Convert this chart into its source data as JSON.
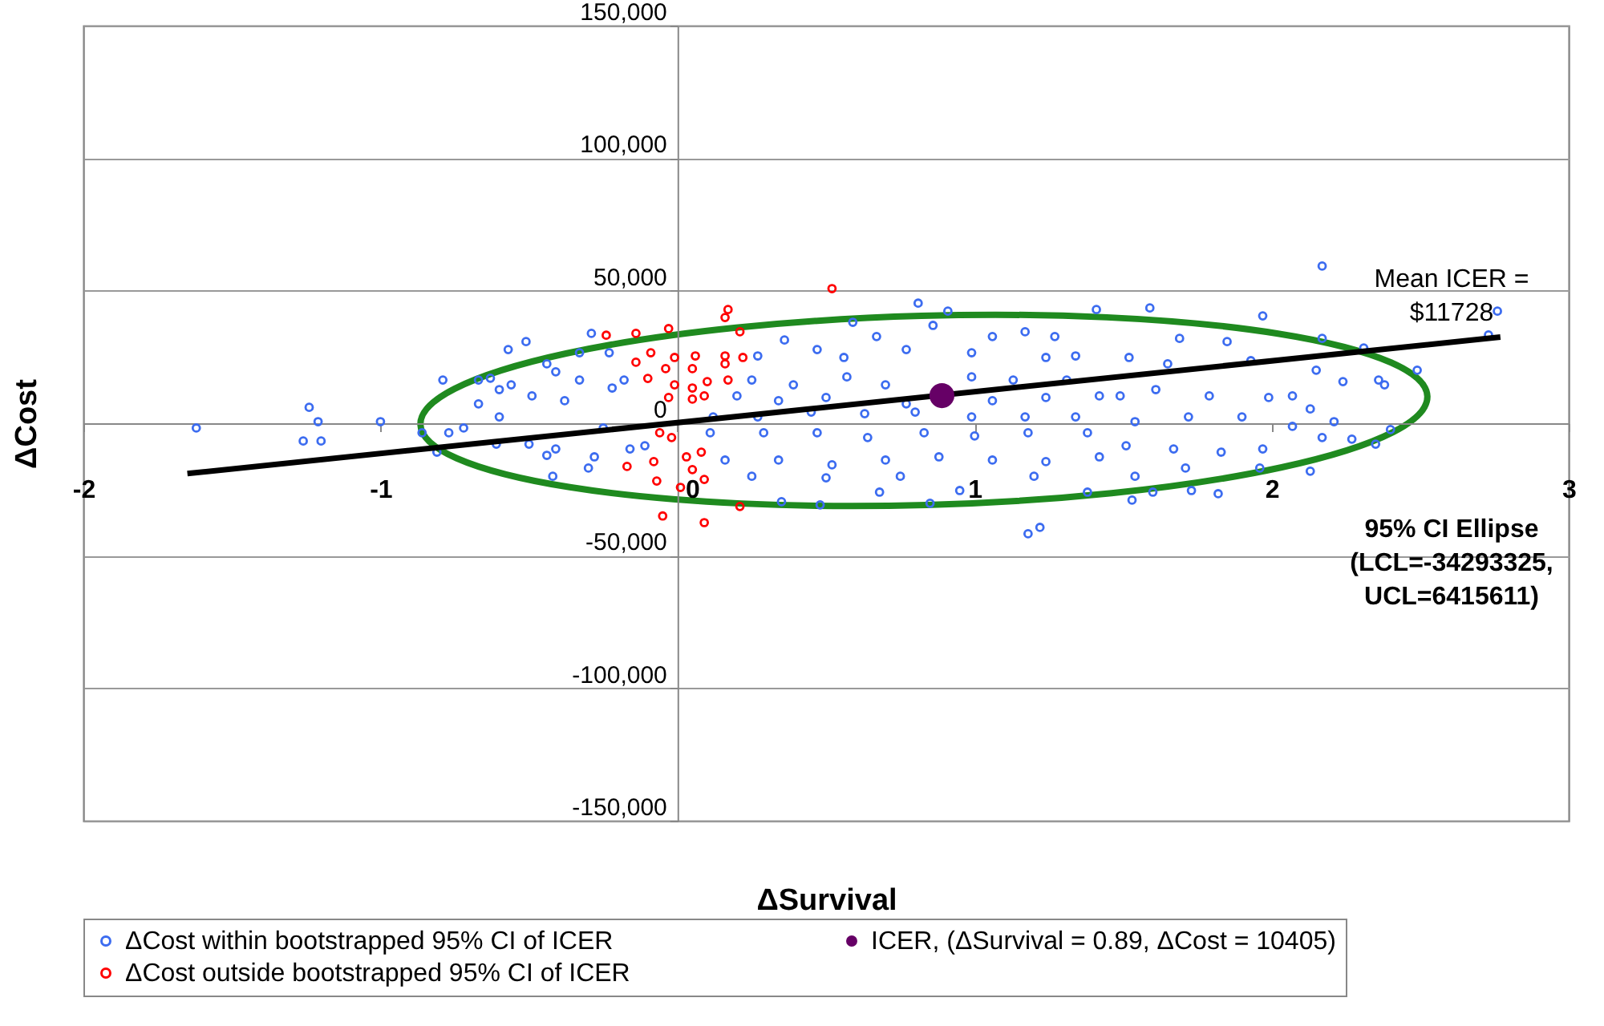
{
  "chart_data": {
    "type": "scatter",
    "xlabel": "ΔSurvival",
    "ylabel": "ΔCost",
    "xlim": [
      -2,
      3
    ],
    "xticks": [
      -2,
      -1,
      0,
      1,
      2,
      3
    ],
    "ylim": [
      -150000,
      150000
    ],
    "yticks": [
      {
        "value": -150000,
        "label": "-150,000"
      },
      {
        "value": -100000,
        "label": "-100,000"
      },
      {
        "value": -50000,
        "label": "-50,000"
      },
      {
        "value": 0,
        "label": "0"
      },
      {
        "value": 50000,
        "label": "50,000"
      },
      {
        "value": 100000,
        "label": "100,000"
      },
      {
        "value": 150000,
        "label": "150,000"
      }
    ],
    "grid": "y",
    "legend": "bottom",
    "series": [
      {
        "name": "ΔCost within bootstrapped 95% CI of ICER",
        "color": "#3c6cf0",
        "marker": "circle",
        "x": [
          -1.62,
          -1.24,
          -1.21,
          -1.26,
          -1.2,
          -1.0,
          -0.86,
          -0.81,
          -0.79,
          -0.77,
          -0.67,
          -0.63,
          -0.57,
          -0.51,
          -0.44,
          -0.41,
          -0.67,
          -0.6,
          -0.61,
          -0.5,
          -0.44,
          -0.41,
          -0.33,
          -0.33,
          -0.29,
          -0.3,
          -0.28,
          -0.42,
          -0.23,
          -0.22,
          -0.25,
          -0.16,
          -0.11,
          -0.18,
          -0.38,
          -0.49,
          -0.56,
          -0.72,
          -0.6,
          0.81,
          0.91,
          0.59,
          0.86,
          0.36,
          0.67,
          1.06,
          1.17,
          1.27,
          1.41,
          0.27,
          0.47,
          0.56,
          0.77,
          0.99,
          1.24,
          1.34,
          0.25,
          0.39,
          0.57,
          0.7,
          0.99,
          1.13,
          1.31,
          0.2,
          0.34,
          0.5,
          0.77,
          1.06,
          1.24,
          1.42,
          0.12,
          0.27,
          0.45,
          0.63,
          0.8,
          0.99,
          1.17,
          1.34,
          0.11,
          0.29,
          0.47,
          0.64,
          0.83,
          1.0,
          1.18,
          1.38,
          0.16,
          0.34,
          0.52,
          0.7,
          0.88,
          1.06,
          1.24,
          1.42,
          0.25,
          0.5,
          0.75,
          0.95,
          0.68,
          0.48,
          0.85,
          0.35,
          1.18,
          1.22,
          1.38,
          1.2,
          2.17,
          2.76,
          2.73,
          1.59,
          1.97,
          1.69,
          1.85,
          2.17,
          2.31,
          2.49,
          1.93,
          1.65,
          1.52,
          2.15,
          2.24,
          2.36,
          2.38,
          2.07,
          2.13,
          1.99,
          1.79,
          1.61,
          1.49,
          1.9,
          1.72,
          1.54,
          2.07,
          2.21,
          2.4,
          2.17,
          2.27,
          2.35,
          1.97,
          1.83,
          1.67,
          1.51,
          2.13,
          1.96,
          1.71,
          1.54,
          1.82,
          1.73,
          1.6,
          1.53
        ],
        "values": [
          -1800,
          6000,
          600,
          -6700,
          -6700,
          600,
          -3600,
          -10900,
          16300,
          -3600,
          16300,
          17000,
          27800,
          30800,
          22400,
          19400,
          7300,
          2400,
          -7900,
          -7900,
          -12100,
          -9700,
          26600,
          16300,
          33900,
          -16900,
          -12700,
          -20000,
          26600,
          13300,
          -1800,
          -9700,
          -8500,
          16300,
          8500,
          10300,
          14500,
          -1800,
          12700,
          45300,
          42300,
          38100,
          36900,
          31400,
          32700,
          32700,
          34500,
          32700,
          42900,
          25400,
          27800,
          24800,
          27800,
          26600,
          24800,
          25400,
          16300,
          14500,
          17500,
          14500,
          17500,
          16300,
          16300,
          10300,
          8500,
          9700,
          7300,
          8500,
          9700,
          10300,
          2400,
          2400,
          4200,
          3600,
          4200,
          2400,
          2400,
          2400,
          -3600,
          -3600,
          -3600,
          -5400,
          -3600,
          -4800,
          -3600,
          -3600,
          -13900,
          -13900,
          -15700,
          -13900,
          -12700,
          -13900,
          -14500,
          -12700,
          -20000,
          -20600,
          -20000,
          -25400,
          -26000,
          -30800,
          -30200,
          -29600,
          -41700,
          -39300,
          -26000,
          -20000,
          59300,
          42300,
          33300,
          43500,
          40500,
          32000,
          30800,
          32000,
          28400,
          20000,
          23600,
          22400,
          24800,
          20000,
          15700,
          16300,
          14500,
          10300,
          5400,
          9700,
          10300,
          12700,
          10300,
          2400,
          2400,
          600,
          -1200,
          600,
          -2400,
          -5400,
          -6000,
          -7900,
          -9700,
          -10900,
          -9700,
          -8500,
          -18100,
          -16900,
          -16900,
          -20000,
          -26600,
          -25400,
          -26000,
          -29000
        ]
      },
      {
        "name": "ICER, (ΔSurvival = 0.89, ΔCost = 10405)",
        "color": "#660066",
        "marker": "circle",
        "x": [
          0.89
        ],
        "values": [
          10405
        ]
      },
      {
        "name": "ΔCost outside bootstrapped 95% CI of ICER",
        "color": "#ff0000",
        "marker": "circle",
        "x": [
          -0.24,
          -0.14,
          -0.03,
          -0.09,
          -0.14,
          -0.01,
          -0.04,
          -0.1,
          -0.03,
          -0.02,
          -0.08,
          -0.17,
          -0.07,
          0.01,
          -0.05,
          -0.01,
          -0.06,
          0.52,
          0.17,
          0.16,
          0.21,
          0.06,
          0.16,
          0.22,
          0.16,
          0.05,
          0.1,
          0.05,
          0.17,
          0.09,
          0.05,
          0.08,
          0.03,
          0.05,
          0.09,
          0.21,
          0.09
        ],
        "values": [
          33200,
          33900,
          35700,
          26600,
          23000,
          24800,
          20600,
          16900,
          9700,
          -5400,
          -14500,
          -16300,
          -21800,
          -24200,
          -35000,
          14500,
          -3600,
          50800,
          42900,
          39900,
          34500,
          25400,
          25400,
          24800,
          22400,
          20600,
          15700,
          13300,
          16300,
          10300,
          9100,
          -10900,
          -12700,
          -17500,
          -21200,
          -31400,
          -37500
        ]
      },
      {
        "type": "line",
        "color": "#000000",
        "x": [
          -1.65,
          2.77
        ],
        "values": [
          -19000,
          32500
        ]
      }
    ],
    "annotations": [
      "Mean ICER =\n$11728",
      "95% CI Ellipse\n(LCL=-34293325,\nUCL=6415611)"
    ]
  }
}
